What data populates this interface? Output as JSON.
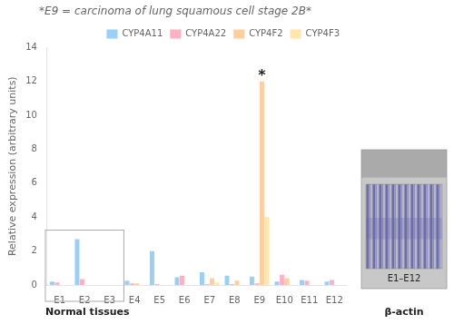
{
  "chart_data": {
    "type": "bar",
    "title": "*E9 = carcinoma of lung squamous cell stage 2B*",
    "y_label": "Relative expression (arbitrary units)",
    "categories": [
      "E1",
      "E2",
      "E3",
      "E4",
      "E5",
      "E6",
      "E7",
      "E8",
      "E9",
      "E10",
      "E11",
      "E12"
    ],
    "series": [
      {
        "name": "CYP4A11",
        "values": [
          0.2,
          2.7,
          0.0,
          0.25,
          2.0,
          0.45,
          0.75,
          0.55,
          0.5,
          0.2,
          0.3,
          0.2
        ]
      },
      {
        "name": "CYP4A22",
        "values": [
          0.15,
          0.35,
          0.0,
          0.1,
          0.05,
          0.55,
          0.05,
          0.05,
          0.1,
          0.6,
          0.25,
          0.3
        ]
      },
      {
        "name": "CYP4F2",
        "values": [
          0.0,
          0.0,
          0.0,
          0.1,
          0.0,
          0.0,
          0.4,
          0.25,
          12.0,
          0.4,
          0.0,
          0.0
        ]
      },
      {
        "name": "CYP4F3",
        "values": [
          0.0,
          0.0,
          0.0,
          0.0,
          0.0,
          0.0,
          0.15,
          0.0,
          4.0,
          0.0,
          0.0,
          0.0
        ]
      }
    ],
    "ylim": [
      0,
      14
    ],
    "yticks": [
      0,
      2,
      4,
      6,
      8,
      10,
      12,
      14
    ],
    "grid": false,
    "legend": "upper right",
    "annotations": [
      {
        "text": "*",
        "category": "E9",
        "series": "CYP4F2"
      },
      {
        "text": "Normal tissues",
        "categories": [
          "E1",
          "E2",
          "E3"
        ]
      },
      {
        "text": "E1–E12"
      },
      {
        "text": "β-actin"
      }
    ]
  }
}
